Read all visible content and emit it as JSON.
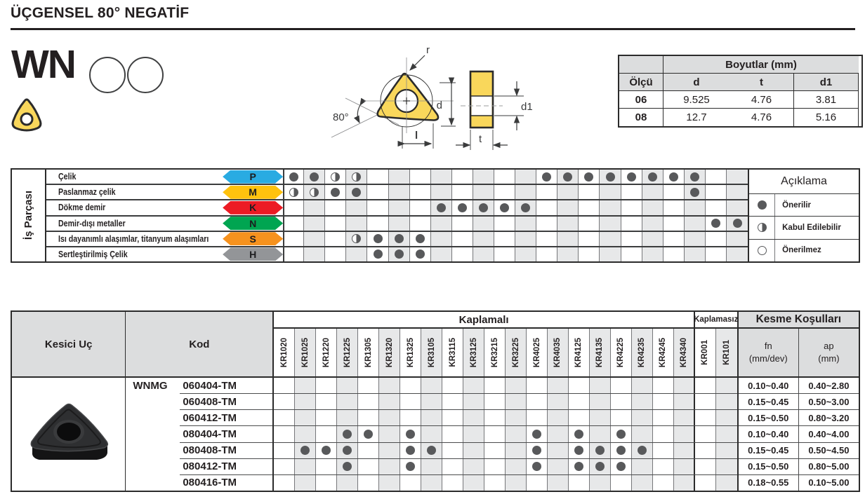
{
  "title": "ÜÇGENSEL 80° NEGATİF",
  "product": {
    "code": "WN"
  },
  "drawing": {
    "r": "r",
    "d": "d",
    "d1": "d1",
    "t": "t",
    "l": "l",
    "angle": "80°"
  },
  "dimensions": {
    "title": "Boyutlar (mm)",
    "corner": "Ölçü",
    "headers": [
      "d",
      "t",
      "d1"
    ],
    "rows": [
      {
        "size": "06",
        "d": "9.525",
        "t": "4.76",
        "d1": "3.81"
      },
      {
        "size": "08",
        "d": "12.7",
        "t": "4.76",
        "d1": "5.16"
      }
    ]
  },
  "grades": [
    "KR1020",
    "KR1025",
    "KR1220",
    "KR1225",
    "KR1305",
    "KR1320",
    "KR1325",
    "KR3105",
    "KR3115",
    "KR3125",
    "KR3215",
    "KR3225",
    "KR4025",
    "KR4035",
    "KR4125",
    "KR4135",
    "KR4225",
    "KR4235",
    "KR4245",
    "KR4340",
    "KR001",
    "KR101"
  ],
  "materials": {
    "side_label": "İş Parçası",
    "rows": [
      {
        "name": "Çelik",
        "letter": "P",
        "color": "#29ABE2",
        "dots": {
          "1": "full",
          "2": "full",
          "3": "half",
          "4": "half",
          "13": "full",
          "14": "full",
          "15": "full",
          "16": "full",
          "17": "full",
          "18": "full",
          "19": "full",
          "20": "full"
        }
      },
      {
        "name": "Paslanmaz çelik",
        "letter": "M",
        "color": "#FFC20E",
        "dots": {
          "1": "half",
          "2": "half",
          "3": "full",
          "4": "full",
          "20": "full"
        }
      },
      {
        "name": "Dökme demir",
        "letter": "K",
        "color": "#EC1B24",
        "dots": {
          "8": "full",
          "9": "full",
          "10": "full",
          "11": "full",
          "12": "full"
        }
      },
      {
        "name": "Demir-dışı metaller",
        "letter": "N",
        "color": "#00A551",
        "dots": {
          "21": "full",
          "22": "full"
        }
      },
      {
        "name": "Isı dayanımlı alaşımlar, titanyum alaşımları",
        "letter": "S",
        "color": "#F6921E",
        "dots": {
          "4": "half",
          "5": "full",
          "6": "full",
          "7": "full"
        }
      },
      {
        "name": "Sertleştirilmiş Çelik",
        "letter": "H",
        "color": "#939598",
        "dots": {
          "5": "full",
          "6": "full",
          "7": "full"
        }
      }
    ],
    "legend": {
      "title": "Açıklama",
      "items": [
        {
          "symbol": "full",
          "label": "Önerilir"
        },
        {
          "symbol": "half",
          "label": "Kabul Edilebilir"
        },
        {
          "symbol": "empty",
          "label": "Önerilmez"
        }
      ]
    }
  },
  "inserts": {
    "headers": {
      "insert": "Kesici Uç",
      "code": "Kod",
      "coated": "Kaplamalı",
      "uncoated": "Kaplamasız",
      "cutting": "Kesme Koşulları",
      "fn": "fn",
      "fn_unit": "(mm/dev)",
      "ap": "ap",
      "ap_unit": "(mm)"
    },
    "series": "WNMG",
    "rows": [
      {
        "code": "060404-TM",
        "dots": [],
        "fn": "0.10~0.40",
        "ap": "0.40~2.80"
      },
      {
        "code": "060408-TM",
        "dots": [],
        "fn": "0.15~0.45",
        "ap": "0.50~3.00"
      },
      {
        "code": "060412-TM",
        "dots": [],
        "fn": "0.15~0.50",
        "ap": "0.80~3.20"
      },
      {
        "code": "080404-TM",
        "dots": [
          4,
          5,
          7,
          13,
          15,
          17
        ],
        "fn": "0.10~0.40",
        "ap": "0.40~4.00"
      },
      {
        "code": "080408-TM",
        "dots": [
          2,
          3,
          4,
          7,
          8,
          13,
          15,
          16,
          17,
          18
        ],
        "fn": "0.15~0.45",
        "ap": "0.50~4.50"
      },
      {
        "code": "080412-TM",
        "dots": [
          4,
          7,
          13,
          15,
          16,
          17
        ],
        "fn": "0.15~0.50",
        "ap": "0.80~5.00"
      },
      {
        "code": "080416-TM",
        "dots": [],
        "fn": "0.18~0.55",
        "ap": "0.10~5.00"
      }
    ]
  },
  "colors": {
    "dot": "#58595B",
    "shade": "#E7E8E9",
    "header_bg": "#DCDDDE",
    "insert_yellow": "#F9D75B",
    "p_blue": "#29ABE2",
    "m_yellow": "#FFC20E",
    "k_red": "#EC1B24",
    "n_green": "#00A551",
    "s_orange": "#F6921E",
    "h_gray": "#939598"
  }
}
